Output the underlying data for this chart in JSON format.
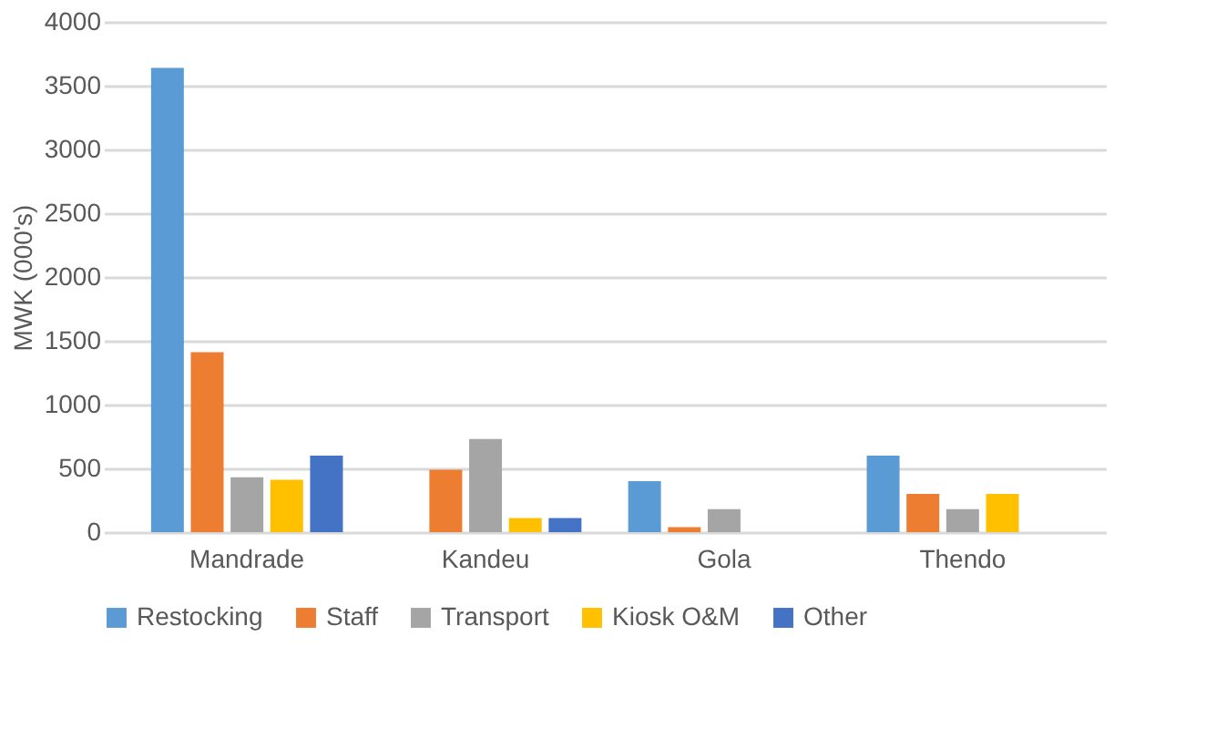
{
  "chart_data": {
    "type": "bar",
    "ylabel": "MWK (000's)",
    "categories": [
      "Mandrade",
      "Kandeu",
      "Gola",
      "Thendo"
    ],
    "series": [
      {
        "name": "Restocking",
        "color": "#5b9bd5",
        "values": [
          3640,
          0,
          400,
          600
        ]
      },
      {
        "name": "Staff",
        "color": "#ed7d31",
        "values": [
          1410,
          490,
          40,
          300
        ]
      },
      {
        "name": "Transport",
        "color": "#a5a5a5",
        "values": [
          430,
          730,
          180,
          180
        ]
      },
      {
        "name": "Kiosk O&M",
        "color": "#ffc000",
        "values": [
          410,
          110,
          0,
          300
        ]
      },
      {
        "name": "Other",
        "color": "#4472c4",
        "values": [
          600,
          110,
          0,
          0
        ]
      }
    ],
    "ylim": [
      0,
      4000
    ],
    "yticks": [
      0,
      500,
      1000,
      1500,
      2000,
      2500,
      3000,
      3500,
      4000
    ],
    "grid": "y",
    "legend": "bottom"
  }
}
